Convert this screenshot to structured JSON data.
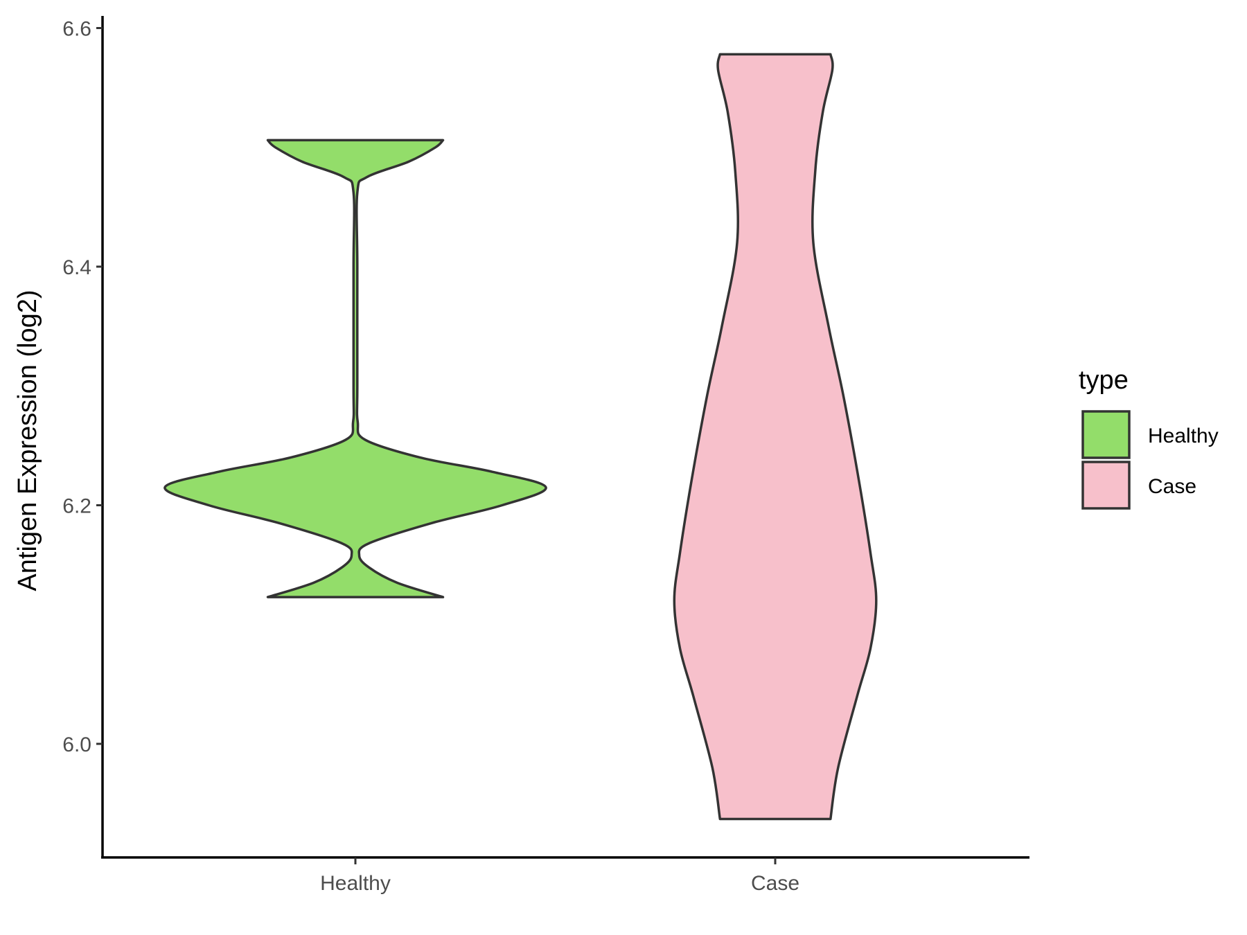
{
  "chart_data": {
    "type": "violin",
    "ylabel": "Antigen Expression (log2)",
    "xlabel": "",
    "ylim": [
      5.91,
      6.612
    ],
    "y_ticks": [
      "6.0",
      "6.2",
      "6.4",
      "6.6"
    ],
    "categories": [
      "Healthy",
      "Case"
    ],
    "legend": {
      "title": "type",
      "position": "right",
      "items": [
        {
          "label": "Healthy",
          "color": "#93dd6a"
        },
        {
          "label": "Case",
          "color": "#f7c0cb"
        }
      ]
    },
    "grid": false,
    "series": [
      {
        "name": "Healthy",
        "color": "#93dd6a",
        "y_min": 6.123,
        "y_max": 6.506,
        "density_profile": [
          [
            6.123,
            0.46
          ],
          [
            6.135,
            0.22
          ],
          [
            6.148,
            0.07
          ],
          [
            6.158,
            0.02
          ],
          [
            6.168,
            0.07
          ],
          [
            6.185,
            0.4
          ],
          [
            6.2,
            0.77
          ],
          [
            6.215,
            1.0
          ],
          [
            6.228,
            0.72
          ],
          [
            6.24,
            0.34
          ],
          [
            6.255,
            0.05
          ],
          [
            6.27,
            0.012
          ],
          [
            6.3,
            0.01
          ],
          [
            6.4,
            0.01
          ],
          [
            6.462,
            0.01
          ],
          [
            6.475,
            0.06
          ],
          [
            6.488,
            0.28
          ],
          [
            6.5,
            0.42
          ],
          [
            6.506,
            0.46
          ]
        ]
      },
      {
        "name": "Case",
        "color": "#f7c0cb",
        "y_min": 5.937,
        "y_max": 6.578,
        "density_profile": [
          [
            5.937,
            0.29
          ],
          [
            5.98,
            0.33
          ],
          [
            6.04,
            0.43
          ],
          [
            6.08,
            0.5
          ],
          [
            6.12,
            0.53
          ],
          [
            6.16,
            0.5
          ],
          [
            6.22,
            0.44
          ],
          [
            6.29,
            0.36
          ],
          [
            6.35,
            0.28
          ],
          [
            6.42,
            0.2
          ],
          [
            6.48,
            0.21
          ],
          [
            6.53,
            0.25
          ],
          [
            6.565,
            0.3
          ],
          [
            6.578,
            0.29
          ]
        ]
      }
    ]
  }
}
